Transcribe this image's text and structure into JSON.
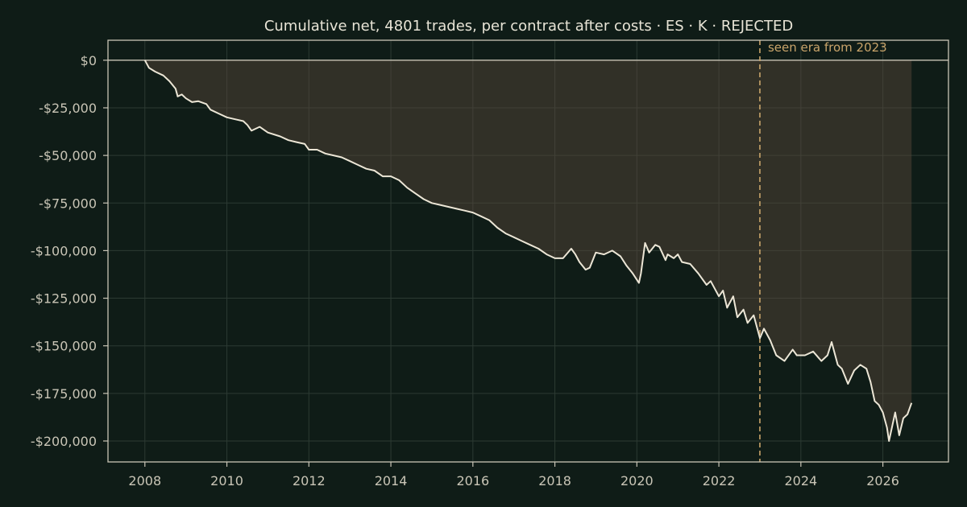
{
  "chart_data": {
    "type": "line",
    "title": "Cumulative net, 4801 trades, per contract after costs  ·  ES · K · REJECTED",
    "xlabel": "",
    "ylabel": "",
    "xlim": [
      2007.1,
      2027.6
    ],
    "ylim": [
      -211000,
      10500
    ],
    "x_ticks": [
      2008,
      2010,
      2012,
      2014,
      2016,
      2018,
      2020,
      2022,
      2024,
      2026
    ],
    "x_tick_labels": [
      "2008",
      "2010",
      "2012",
      "2014",
      "2016",
      "2018",
      "2020",
      "2022",
      "2024",
      "2026"
    ],
    "y_ticks": [
      0,
      -25000,
      -50000,
      -75000,
      -100000,
      -125000,
      -150000,
      -175000,
      -200000
    ],
    "y_tick_labels": [
      "$0",
      "-$25,000",
      "-$50,000",
      "-$75,000",
      "-$100,000",
      "-$125,000",
      "-$150,000",
      "-$175,000",
      "-$200,000"
    ],
    "grid": true,
    "zero_line": 0,
    "drawdown_fill": "between equity curve and $0",
    "vline": {
      "x": 2023.0,
      "label": "seen era from 2023"
    },
    "series": [
      {
        "x": [
          2008.0,
          2008.1,
          2008.25,
          2008.45,
          2008.6,
          2008.75,
          2008.8,
          2008.9,
          2009.0,
          2009.15,
          2009.3,
          2009.5,
          2009.6,
          2009.8,
          2010.0,
          2010.2,
          2010.4,
          2010.5,
          2010.6,
          2010.8,
          2011.0,
          2011.3,
          2011.5,
          2011.7,
          2011.9,
          2012.0,
          2012.2,
          2012.4,
          2012.6,
          2012.8,
          2013.0,
          2013.2,
          2013.4,
          2013.6,
          2013.8,
          2014.0,
          2014.2,
          2014.4,
          2014.6,
          2014.8,
          2015.0,
          2015.2,
          2015.4,
          2015.6,
          2015.8,
          2016.0,
          2016.2,
          2016.4,
          2016.6,
          2016.8,
          2017.0,
          2017.2,
          2017.4,
          2017.6,
          2017.8,
          2018.0,
          2018.2,
          2018.4,
          2018.5,
          2018.6,
          2018.75,
          2018.85,
          2019.0,
          2019.2,
          2019.4,
          2019.6,
          2019.75,
          2019.9,
          2020.05,
          2020.1,
          2020.2,
          2020.3,
          2020.45,
          2020.55,
          2020.7,
          2020.75,
          2020.9,
          2021.0,
          2021.1,
          2021.3,
          2021.5,
          2021.7,
          2021.8,
          2022.0,
          2022.1,
          2022.2,
          2022.35,
          2022.45,
          2022.6,
          2022.7,
          2022.85,
          2023.0,
          2023.1,
          2023.25,
          2023.4,
          2023.6,
          2023.8,
          2023.9,
          2024.1,
          2024.3,
          2024.5,
          2024.65,
          2024.75,
          2024.9,
          2025.0,
          2025.15,
          2025.3,
          2025.45,
          2025.6,
          2025.7,
          2025.8,
          2025.9,
          2026.0,
          2026.1,
          2026.15,
          2026.3,
          2026.4,
          2026.5,
          2026.6,
          2026.7
        ],
        "y": [
          0,
          -4000,
          -6000,
          -8000,
          -11000,
          -15000,
          -19000,
          -18000,
          -20000,
          -22000,
          -21500,
          -23000,
          -26000,
          -28000,
          -30000,
          -31000,
          -32000,
          -34000,
          -37000,
          -35000,
          -38000,
          -40000,
          -42000,
          -43000,
          -44000,
          -47000,
          -47000,
          -49000,
          -50000,
          -51000,
          -53000,
          -55000,
          -57000,
          -58000,
          -61000,
          -61000,
          -63000,
          -67000,
          -70000,
          -73000,
          -75000,
          -76000,
          -77000,
          -78000,
          -79000,
          -80000,
          -82000,
          -84000,
          -88000,
          -91000,
          -93000,
          -95000,
          -97000,
          -99000,
          -102000,
          -104000,
          -104000,
          -99000,
          -102000,
          -106000,
          -110000,
          -109000,
          -101000,
          -102000,
          -100000,
          -103000,
          -108000,
          -112000,
          -117000,
          -112000,
          -96000,
          -101000,
          -97000,
          -98000,
          -105000,
          -102000,
          -104000,
          -102000,
          -106000,
          -107000,
          -112000,
          -118000,
          -116000,
          -124000,
          -121000,
          -130000,
          -124000,
          -135000,
          -131000,
          -138000,
          -134000,
          -146000,
          -141000,
          -147000,
          -155000,
          -158000,
          -152000,
          -155000,
          -155000,
          -153000,
          -158000,
          -155000,
          -148000,
          -160000,
          -162000,
          -170000,
          -163000,
          -160000,
          -162000,
          -169000,
          -179000,
          -181000,
          -185000,
          -193000,
          -200000,
          -185000,
          -197000,
          -188000,
          -186000,
          -180000
        ]
      }
    ]
  }
}
